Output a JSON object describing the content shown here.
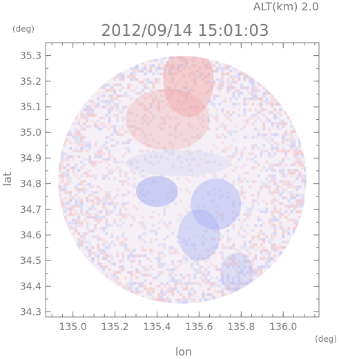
{
  "header": {
    "altitude_label": "ALT(km) 2.0",
    "timestamp": "2012/09/14 15:01:03"
  },
  "colors": {
    "axis": "#777777",
    "positive": "#f2a3a3",
    "negative": "#a7aef3",
    "background_field": "#f4f0f6"
  },
  "chart_data": {
    "type": "heatmap",
    "title": "2012/09/14 15:01:03",
    "xlabel": "lon",
    "ylabel": "lat",
    "x_unit": "(deg)",
    "y_unit": "(deg)",
    "xlim": [
      134.87,
      136.17
    ],
    "ylim": [
      34.28,
      35.35
    ],
    "x_ticks": [
      "135.0",
      "135.2",
      "135.4",
      "135.6",
      "135.8",
      "136.0"
    ],
    "y_ticks": [
      "35.3",
      "35.2",
      "35.1",
      "35.0",
      "34.9",
      "34.8",
      "34.7",
      "34.6",
      "34.5",
      "34.4",
      "34.3"
    ],
    "x_tick_values": [
      135.0,
      135.2,
      135.4,
      135.6,
      135.8,
      136.0
    ],
    "y_tick_values": [
      35.3,
      35.2,
      35.1,
      35.0,
      34.9,
      34.8,
      34.7,
      34.6,
      34.5,
      34.4,
      34.3
    ],
    "radar_center": {
      "lon": 135.52,
      "lat": 34.815
    },
    "radar_radius_deg_lon": 0.59,
    "grid": false,
    "legend": "none",
    "regions": [
      {
        "kind": "positive",
        "lon": 135.55,
        "lat": 35.2,
        "rx": 0.12,
        "ry": 0.14,
        "intensity": 0.45
      },
      {
        "kind": "positive",
        "lon": 135.45,
        "lat": 35.05,
        "rx": 0.2,
        "ry": 0.12,
        "intensity": 0.3
      },
      {
        "kind": "negative",
        "lon": 135.4,
        "lat": 34.77,
        "rx": 0.1,
        "ry": 0.06,
        "intensity": 0.55
      },
      {
        "kind": "negative",
        "lon": 135.68,
        "lat": 34.72,
        "rx": 0.12,
        "ry": 0.1,
        "intensity": 0.45
      },
      {
        "kind": "negative",
        "lon": 135.6,
        "lat": 34.6,
        "rx": 0.1,
        "ry": 0.1,
        "intensity": 0.4
      },
      {
        "kind": "negative",
        "lon": 135.78,
        "lat": 34.45,
        "rx": 0.08,
        "ry": 0.08,
        "intensity": 0.3
      },
      {
        "kind": "negative",
        "lon": 135.5,
        "lat": 34.88,
        "rx": 0.25,
        "ry": 0.05,
        "intensity": 0.15
      }
    ]
  }
}
